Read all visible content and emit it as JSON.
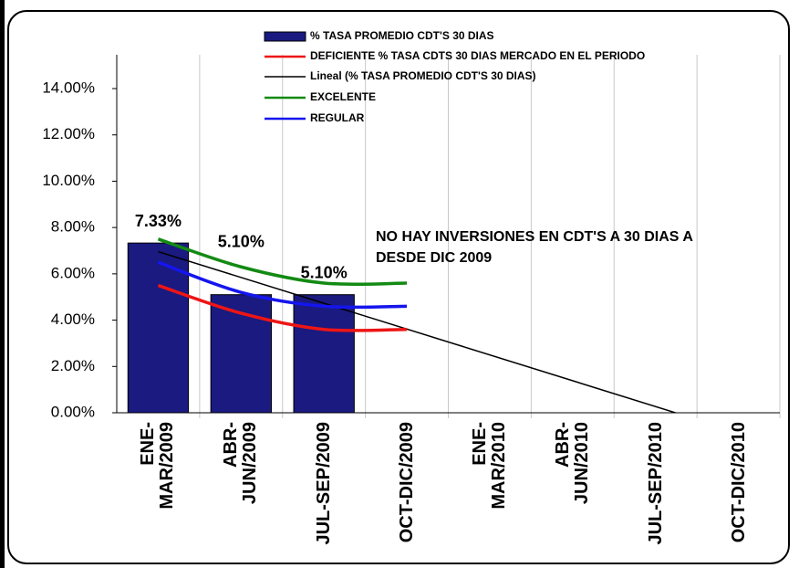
{
  "chart_data": {
    "type": "bar",
    "categories": [
      "ENE-MAR/2009",
      "ABR-JUN/2009",
      "JUL-SEP/2009",
      "OCT-DIC/2009",
      "ENE-MAR/2010",
      "ABR-JUN/2010",
      "JUL-SEP/2010",
      "OCT-DIC/2010"
    ],
    "series": [
      {
        "name": "% TASA PROMEDIO CDT'S 30 DIAS",
        "type": "bar",
        "color": "#1a1a80",
        "values": [
          7.33,
          5.1,
          5.1,
          null,
          null,
          null,
          null,
          null
        ],
        "value_labels": [
          "7.33%",
          "5.10%",
          "5.10%",
          null,
          null,
          null,
          null,
          null
        ],
        "trendline": {
          "name": "Lineal (% TASA PROMEDIO CDT'S 30 DIAS)",
          "kind": "linear",
          "color": "#000000"
        }
      },
      {
        "name": "EXCELENTE",
        "type": "line",
        "color": "#138a13",
        "values": [
          7.5,
          6.3,
          5.6,
          5.6,
          null,
          null,
          null,
          null
        ]
      },
      {
        "name": "REGULAR",
        "type": "line",
        "color": "#1515ee",
        "values": [
          6.5,
          5.2,
          4.6,
          4.6,
          null,
          null,
          null,
          null
        ]
      },
      {
        "name": "DEFICIENTE % TASA CDTS 30 DIAS MERCADO EN EL PERIODO",
        "type": "line",
        "color": "#ee1515",
        "values": [
          5.5,
          4.3,
          3.6,
          3.6,
          null,
          null,
          null,
          null
        ]
      }
    ],
    "annotation": {
      "lines": [
        "NO HAY INVERSIONES EN CDT'S A 30 DIAS A",
        "DESDE DIC 2009"
      ]
    },
    "ylim": [
      0,
      14
    ],
    "yticks": [
      {
        "value": 0,
        "label": "0.00%"
      },
      {
        "value": 2,
        "label": "2.00%"
      },
      {
        "value": 4,
        "label": "4.00%"
      },
      {
        "value": 6,
        "label": "6.00%"
      },
      {
        "value": 8,
        "label": "8.00%"
      },
      {
        "value": 10,
        "label": "10.00%"
      },
      {
        "value": 12,
        "label": "12.00%"
      },
      {
        "value": 14,
        "label": "14.00%"
      }
    ],
    "smooth": true,
    "vertical_grid": true
  }
}
